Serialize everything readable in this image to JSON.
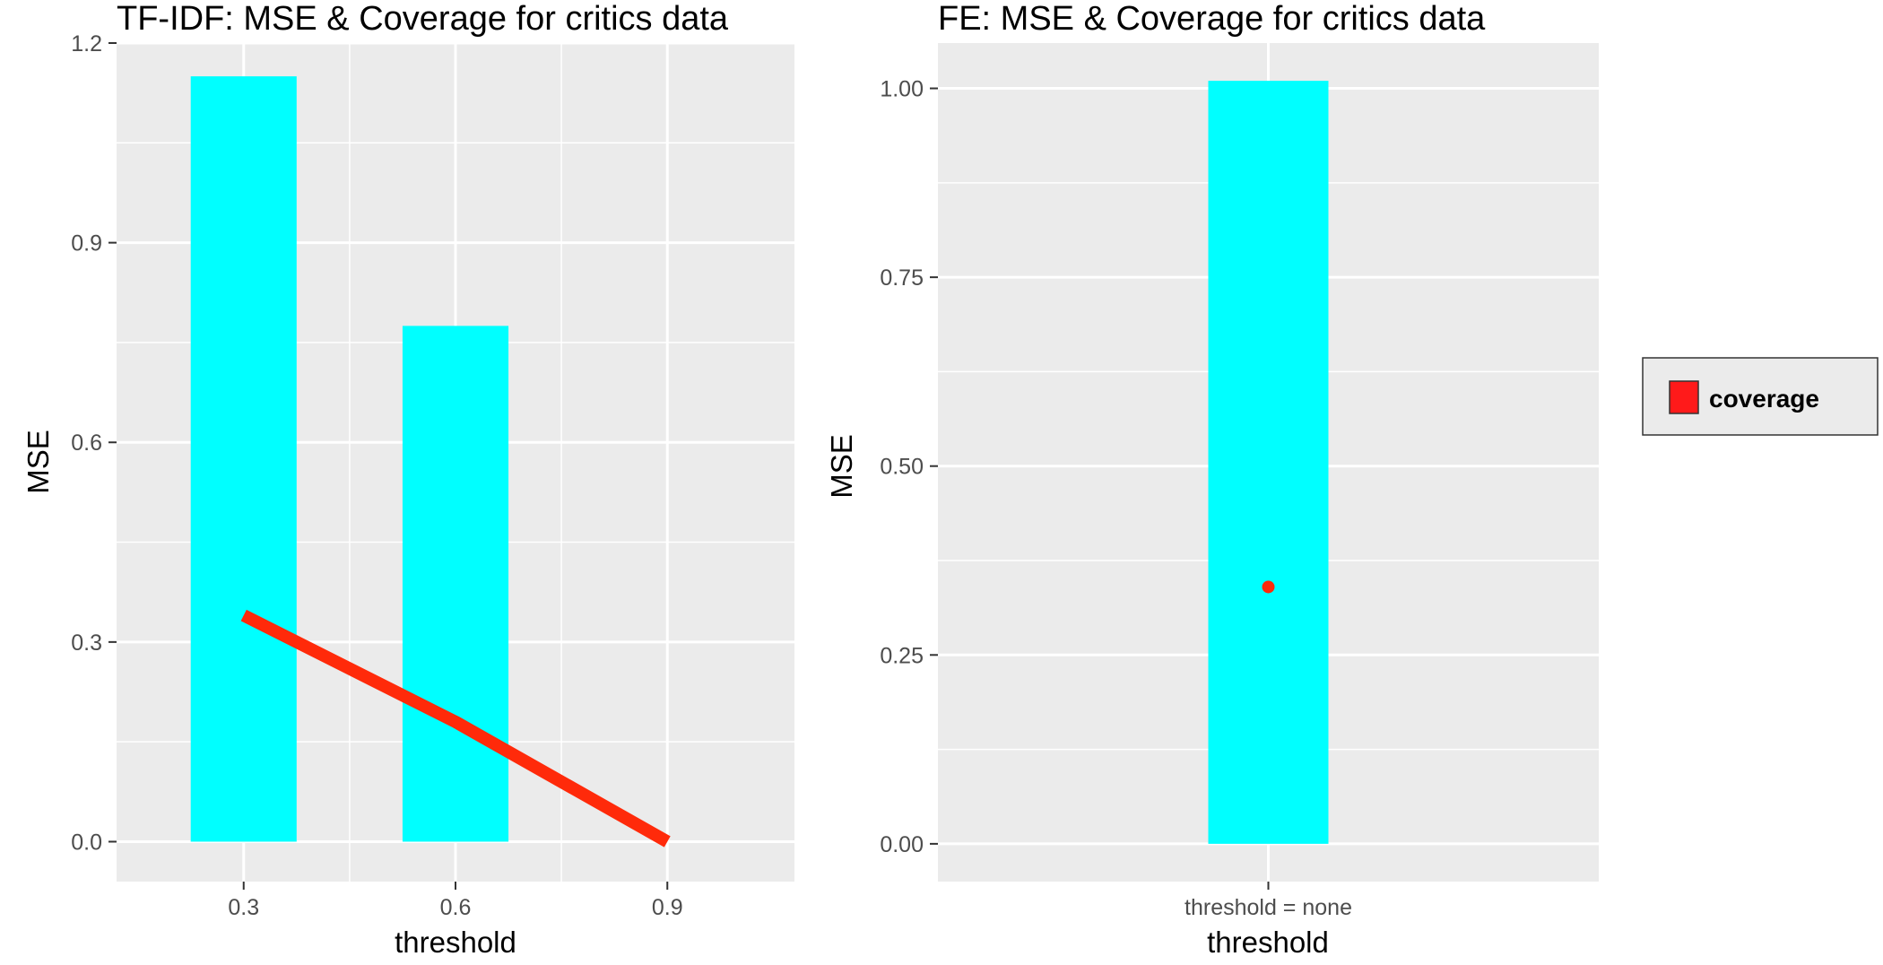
{
  "chart_data": [
    {
      "type": "bar",
      "title": "TF-IDF: MSE & Coverage for critics data",
      "xlabel": "threshold",
      "ylabel": "MSE",
      "x_ticks": [
        "0.3",
        "0.6",
        "0.9"
      ],
      "y_ticks": [
        "0.0",
        "0.3",
        "0.6",
        "0.9",
        "1.2"
      ],
      "xlim": [
        0.12,
        1.08
      ],
      "ylim": [
        -0.06,
        1.2
      ],
      "bars": {
        "name": "MSE",
        "x": [
          0.3,
          0.6
        ],
        "values": [
          1.15,
          0.775
        ],
        "width": 0.15,
        "color": "#00ffff"
      },
      "line": {
        "name": "coverage",
        "x": [
          0.3,
          0.6,
          0.9
        ],
        "values": [
          0.34,
          0.18,
          0.0
        ],
        "color": "#ff2a0a"
      },
      "grid": true
    },
    {
      "type": "bar",
      "title": "FE: MSE & Coverage for critics data",
      "xlabel": "threshold",
      "ylabel": "MSE",
      "categories": [
        "threshold = none"
      ],
      "y_ticks": [
        "0.00",
        "0.25",
        "0.50",
        "0.75",
        "1.00"
      ],
      "ylim": [
        -0.05,
        1.06
      ],
      "bars": {
        "name": "MSE",
        "values": [
          1.01
        ],
        "color": "#00ffff"
      },
      "points": {
        "name": "coverage",
        "values": [
          0.34
        ],
        "color": "#ff2a0a"
      },
      "grid": true
    }
  ],
  "legend": {
    "position": "right",
    "items": [
      {
        "label": "coverage",
        "color": "#ff1a1a"
      }
    ]
  }
}
